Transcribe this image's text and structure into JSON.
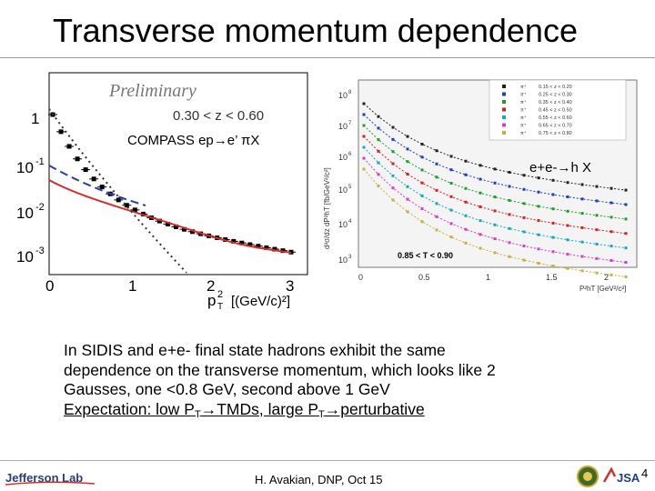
{
  "slide": {
    "title": "Transverse momentum dependence",
    "label_compass": "COMPASS  ep→e’ πX",
    "label_epem": "e+e-→h X",
    "body": {
      "line1": "In SIDIS and e+e- final state hadrons exhibit the same",
      "line2": "dependence on the transverse momentum, which looks like 2",
      "line3": "Gausses, one <0.8 GeV, second above 1 GeV",
      "exp_a": "Expectation: low P",
      "exp_sub1": "T",
      "exp_b": "→TMDs, large P",
      "exp_sub2": "T",
      "exp_c": "→perturbative"
    },
    "footer": "H. Avakian, DNP,  Oct 15",
    "page_number": "4"
  },
  "left_plot": {
    "preliminary": "Preliminary",
    "z_range": "0.30 < z < 0.60",
    "y_ticks": [
      "1",
      "10",
      "10",
      "10"
    ],
    "y_exponents": [
      "",
      "-1",
      "-2",
      "-3"
    ],
    "x_ticks": [
      "0",
      "1",
      "2",
      "3"
    ],
    "x_label": "p",
    "x_label_sup": "2",
    "x_label_sub": "T",
    "x_label_unit": "[(GeV/c)²]"
  },
  "right_plot": {
    "y_label": "d²σ/dz dP²hT [fb/GeV²/c²]",
    "x_label": "P²hT [GeV²/c²]",
    "y_ticks": [
      "10",
      "10",
      "10",
      "10",
      "10",
      "10"
    ],
    "y_exponents": [
      "8",
      "7",
      "6",
      "5",
      "4",
      "3"
    ],
    "x_ticks": [
      "0",
      "0.5",
      "1",
      "1.5",
      "2"
    ],
    "t_range": "0.85 < T < 0.90",
    "legend": [
      "0.15 < z < 0.20",
      "0.25 < z < 0.30",
      "0.35 < z < 0.40",
      "0.45 < z < 0.50",
      "0.55 < z < 0.60",
      "0.65 < z < 0.70",
      "0.75 < z < 0.80"
    ],
    "legend_prefix": "π⁺"
  },
  "logos": {
    "jlab": "Jefferson Lab",
    "jsa": "JSA"
  },
  "colors": {
    "series": [
      "#222222",
      "#1a3fbf",
      "#1f9e2a",
      "#d62020",
      "#16a8b8",
      "#d93cc6",
      "#c8b040"
    ],
    "compass_fit": "#d32f2f",
    "compass_gauss1": "#2a3fa8"
  }
}
